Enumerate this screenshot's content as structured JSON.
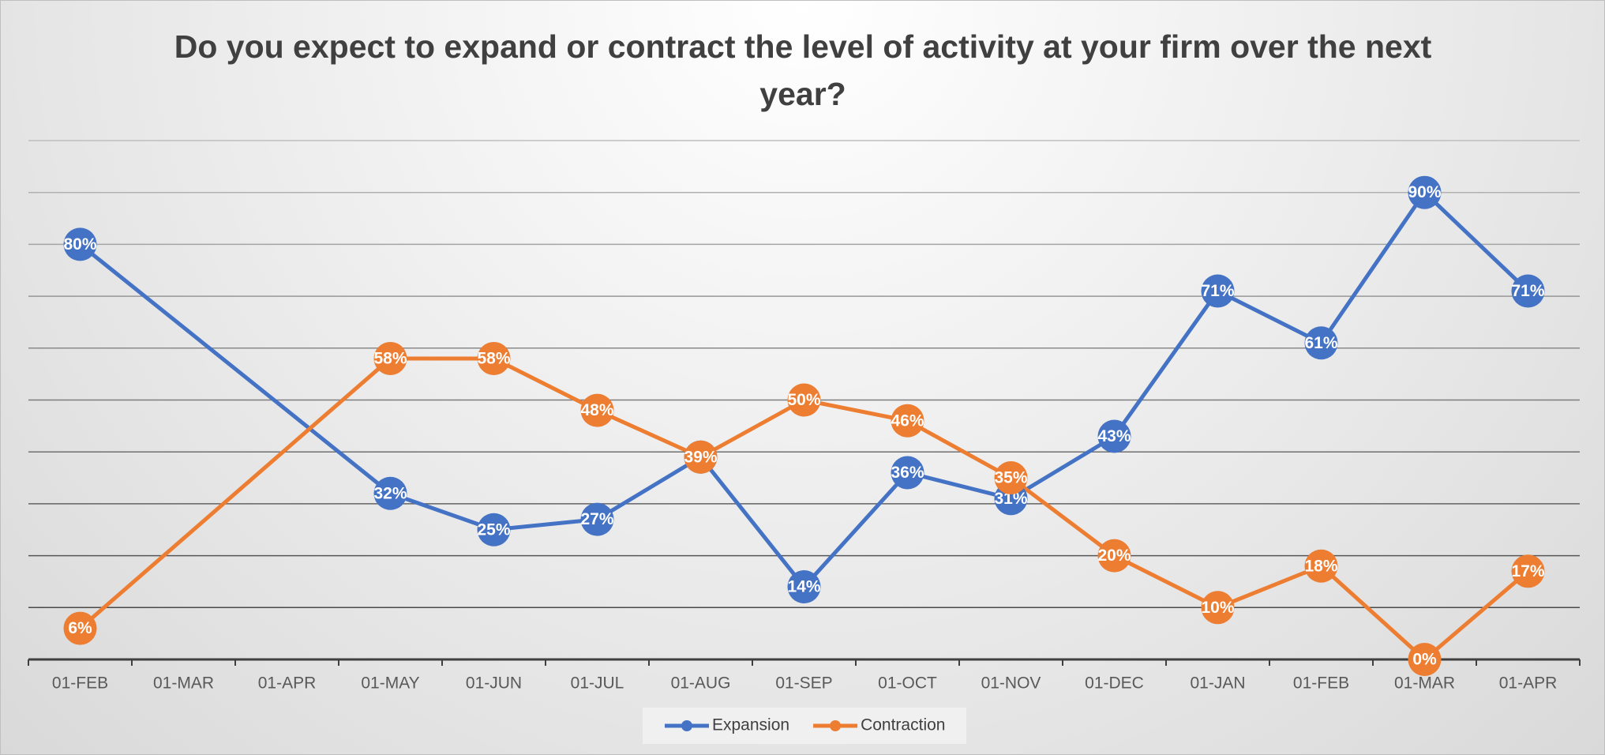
{
  "chart_data": {
    "type": "line",
    "title": "Do you expect to expand or contract the level of activity at your firm over the next year?",
    "categories": [
      "01-FEB",
      "01-MAR",
      "01-APR",
      "01-MAY",
      "01-JUN",
      "01-JUL",
      "01-AUG",
      "01-SEP",
      "01-OCT",
      "01-NOV",
      "01-DEC",
      "01-JAN",
      "01-FEB",
      "01-MAR",
      "01-APR"
    ],
    "series": [
      {
        "name": "Expansion",
        "color": "#4472c4",
        "values": [
          80,
          null,
          null,
          32,
          25,
          27,
          39,
          14,
          36,
          31,
          43,
          71,
          61,
          90,
          71
        ],
        "value_labels": [
          "80%",
          null,
          null,
          "32%",
          "25%",
          "27%",
          null,
          "14%",
          "36%",
          "31%",
          "43%",
          "71%",
          "61%",
          "90%",
          "71%"
        ]
      },
      {
        "name": "Contraction",
        "color": "#ed7d31",
        "values": [
          6,
          null,
          null,
          58,
          58,
          48,
          39,
          50,
          46,
          35,
          20,
          10,
          18,
          0,
          17
        ],
        "value_labels": [
          "6%",
          null,
          null,
          "58%",
          "58%",
          "48%",
          "39%",
          "50%",
          "46%",
          "35%",
          "20%",
          "10%",
          "18%",
          "0%",
          "17%"
        ]
      }
    ],
    "ylim": [
      0,
      100
    ],
    "yticks": [
      0,
      10,
      20,
      30,
      40,
      50,
      60,
      70,
      80,
      90,
      100
    ],
    "grid": true,
    "connect_gaps": true,
    "legend": "bottom"
  }
}
